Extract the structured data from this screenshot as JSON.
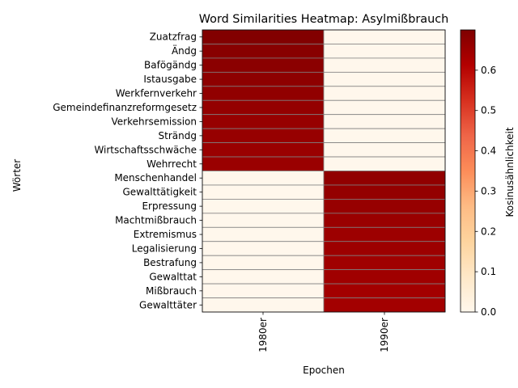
{
  "chart_data": {
    "type": "heatmap",
    "title": "Word Similarities Heatmap: Asylmißbrauch",
    "xlabel": "Epochen",
    "ylabel": "Wörter",
    "colorbar_label": "Kosinusähnlichkeit",
    "colormap": "OrRd",
    "colormap_stops": [
      "#fff7ec",
      "#fee8c8",
      "#fdd49e",
      "#fdbb84",
      "#fc8d59",
      "#ef6548",
      "#d7301f",
      "#b30000",
      "#7f0000"
    ],
    "vmin": 0.0,
    "vmax": 0.7,
    "colorbar_ticks": [
      0.0,
      0.1,
      0.2,
      0.3,
      0.4,
      0.5,
      0.6
    ],
    "colorbar_tick_labels": [
      "0.0",
      "0.1",
      "0.2",
      "0.3",
      "0.4",
      "0.5",
      "0.6"
    ],
    "cell_edge_color": "#808080",
    "columns": [
      "1980er",
      "1990er"
    ],
    "rows": [
      "Zuatzfrag",
      "Ändg",
      "Bafögändg",
      "Istausgabe",
      "Werkfernverkehr",
      "Gemeindefinanzreformgesetz",
      "Verkehrsemission",
      "Strändg",
      "Wirtschaftsschwäche",
      "Wehrrecht",
      "Menschenhandel",
      "Gewalttätigkeit",
      "Erpressung",
      "Machtmißbrauch",
      "Extremismus",
      "Legalisierung",
      "Bestrafung",
      "Gewalttat",
      "Mißbrauch",
      "Gewalttäter"
    ],
    "values": [
      [
        0.695,
        0.0
      ],
      [
        0.685,
        0.0
      ],
      [
        0.68,
        0.0
      ],
      [
        0.675,
        0.0
      ],
      [
        0.67,
        0.0
      ],
      [
        0.665,
        0.0
      ],
      [
        0.66,
        0.0
      ],
      [
        0.66,
        0.0
      ],
      [
        0.655,
        0.0
      ],
      [
        0.655,
        0.0
      ],
      [
        0.0,
        0.67
      ],
      [
        0.0,
        0.665
      ],
      [
        0.0,
        0.66
      ],
      [
        0.0,
        0.655
      ],
      [
        0.0,
        0.65
      ],
      [
        0.0,
        0.65
      ],
      [
        0.0,
        0.645
      ],
      [
        0.0,
        0.645
      ],
      [
        0.0,
        0.64
      ],
      [
        0.0,
        0.64
      ]
    ]
  }
}
